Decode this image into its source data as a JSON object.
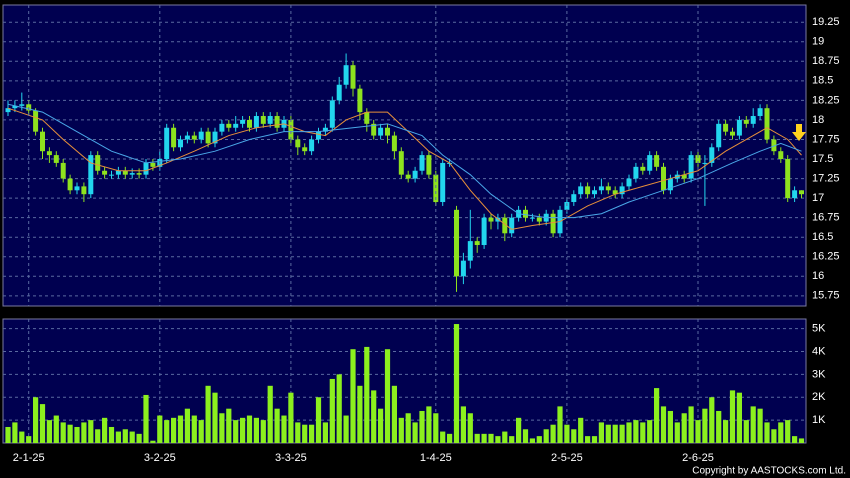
{
  "chart_data": [
    {
      "type": "candlestick",
      "up_color": "#22d6ee",
      "down_color": "#8ee21e",
      "grid": true,
      "ylim": [
        15.62,
        19.47
      ],
      "yticks": [
        15.75,
        16,
        16.25,
        16.5,
        16.75,
        17,
        17.25,
        17.5,
        17.75,
        18,
        18.25,
        18.5,
        18.75,
        19,
        19.25
      ],
      "ohlc": [
        [
          18.1,
          18.25,
          18.05,
          18.15
        ],
        [
          18.15,
          18.25,
          18.1,
          18.18
        ],
        [
          18.18,
          18.35,
          18.12,
          18.2
        ],
        [
          18.2,
          18.25,
          18.05,
          18.12
        ],
        [
          18.12,
          18.15,
          17.8,
          17.85
        ],
        [
          17.85,
          17.9,
          17.5,
          17.6
        ],
        [
          17.6,
          17.65,
          17.45,
          17.55
        ],
        [
          17.55,
          17.6,
          17.4,
          17.45
        ],
        [
          17.45,
          17.5,
          17.2,
          17.25
        ],
        [
          17.25,
          17.3,
          17.05,
          17.1
        ],
        [
          17.1,
          17.2,
          17.05,
          17.15
        ],
        [
          17.15,
          17.2,
          16.95,
          17.05
        ],
        [
          17.05,
          17.6,
          17.0,
          17.55
        ],
        [
          17.55,
          17.6,
          17.3,
          17.35
        ],
        [
          17.35,
          17.4,
          17.25,
          17.3
        ],
        [
          17.3,
          17.35,
          17.25,
          17.3
        ],
        [
          17.3,
          17.4,
          17.25,
          17.35
        ],
        [
          17.35,
          17.4,
          17.25,
          17.3
        ],
        [
          17.3,
          17.38,
          17.25,
          17.32
        ],
        [
          17.32,
          17.38,
          17.25,
          17.3
        ],
        [
          17.3,
          17.5,
          17.25,
          17.45
        ],
        [
          17.45,
          17.5,
          17.35,
          17.4
        ],
        [
          17.4,
          17.6,
          17.35,
          17.5
        ],
        [
          17.5,
          17.95,
          17.45,
          17.9
        ],
        [
          17.9,
          17.95,
          17.6,
          17.65
        ],
        [
          17.65,
          17.8,
          17.6,
          17.75
        ],
        [
          17.75,
          17.85,
          17.7,
          17.8
        ],
        [
          17.8,
          17.85,
          17.7,
          17.75
        ],
        [
          17.75,
          17.9,
          17.7,
          17.85
        ],
        [
          17.85,
          17.9,
          17.65,
          17.7
        ],
        [
          17.7,
          17.9,
          17.65,
          17.85
        ],
        [
          17.85,
          18.0,
          17.8,
          17.95
        ],
        [
          17.95,
          18.0,
          17.85,
          17.9
        ],
        [
          17.9,
          18.05,
          17.85,
          17.95
        ],
        [
          17.95,
          18.05,
          17.9,
          18.0
        ],
        [
          18.0,
          18.05,
          17.85,
          17.9
        ],
        [
          17.9,
          18.1,
          17.85,
          18.05
        ],
        [
          18.05,
          18.1,
          17.9,
          17.95
        ],
        [
          17.95,
          18.1,
          17.9,
          18.05
        ],
        [
          18.05,
          18.1,
          17.85,
          17.9
        ],
        [
          17.9,
          18.05,
          17.85,
          18.0
        ],
        [
          18.0,
          18.05,
          17.7,
          17.75
        ],
        [
          17.75,
          17.8,
          17.55,
          17.65
        ],
        [
          17.65,
          17.7,
          17.55,
          17.6
        ],
        [
          17.6,
          17.8,
          17.55,
          17.75
        ],
        [
          17.75,
          17.9,
          17.7,
          17.85
        ],
        [
          17.85,
          17.95,
          17.8,
          17.9
        ],
        [
          17.9,
          18.3,
          17.85,
          18.25
        ],
        [
          18.25,
          18.55,
          18.2,
          18.45
        ],
        [
          18.45,
          18.85,
          18.4,
          18.7
        ],
        [
          18.7,
          18.75,
          18.3,
          18.4
        ],
        [
          18.4,
          18.45,
          18.0,
          18.1
        ],
        [
          18.1,
          18.15,
          17.85,
          17.95
        ],
        [
          17.95,
          18.0,
          17.75,
          17.8
        ],
        [
          17.8,
          17.95,
          17.75,
          17.9
        ],
        [
          17.9,
          17.95,
          17.7,
          17.8
        ],
        [
          17.8,
          17.85,
          17.5,
          17.6
        ],
        [
          17.6,
          17.65,
          17.25,
          17.3
        ],
        [
          17.3,
          17.35,
          17.2,
          17.25
        ],
        [
          17.25,
          17.4,
          17.2,
          17.35
        ],
        [
          17.35,
          17.6,
          17.3,
          17.55
        ],
        [
          17.55,
          17.6,
          17.25,
          17.3
        ],
        [
          17.3,
          17.35,
          16.9,
          16.95
        ],
        [
          16.95,
          17.5,
          16.9,
          17.45
        ],
        [
          17.45,
          17.5,
          17.4,
          17.45
        ],
        [
          16.85,
          16.9,
          15.8,
          16.0
        ],
        [
          16.0,
          16.3,
          15.9,
          16.2
        ],
        [
          16.2,
          16.85,
          16.1,
          16.45
        ],
        [
          16.45,
          16.5,
          16.3,
          16.4
        ],
        [
          16.4,
          16.8,
          16.35,
          16.75
        ],
        [
          16.75,
          16.8,
          16.6,
          16.7
        ],
        [
          16.7,
          16.8,
          16.6,
          16.75
        ],
        [
          16.75,
          16.8,
          16.45,
          16.55
        ],
        [
          16.55,
          16.8,
          16.5,
          16.75
        ],
        [
          16.75,
          16.9,
          16.7,
          16.85
        ],
        [
          16.85,
          16.9,
          16.7,
          16.75
        ],
        [
          16.75,
          16.8,
          16.7,
          16.75
        ],
        [
          16.75,
          16.8,
          16.65,
          16.7
        ],
        [
          16.7,
          16.85,
          16.65,
          16.8
        ],
        [
          16.8,
          16.85,
          16.5,
          16.55
        ],
        [
          16.55,
          16.9,
          16.5,
          16.85
        ],
        [
          16.85,
          17.0,
          16.8,
          16.95
        ],
        [
          16.95,
          17.1,
          16.9,
          17.05
        ],
        [
          17.05,
          17.2,
          17.0,
          17.15
        ],
        [
          17.15,
          17.2,
          17.0,
          17.05
        ],
        [
          17.05,
          17.15,
          17.0,
          17.1
        ],
        [
          17.1,
          17.25,
          17.05,
          17.15
        ],
        [
          17.15,
          17.2,
          17.05,
          17.1
        ],
        [
          17.1,
          17.15,
          17.0,
          17.05
        ],
        [
          17.05,
          17.2,
          17.0,
          17.15
        ],
        [
          17.15,
          17.3,
          17.1,
          17.25
        ],
        [
          17.25,
          17.45,
          17.2,
          17.4
        ],
        [
          17.4,
          17.45,
          17.3,
          17.35
        ],
        [
          17.35,
          17.6,
          17.3,
          17.55
        ],
        [
          17.55,
          17.6,
          17.35,
          17.4
        ],
        [
          17.4,
          17.45,
          17.05,
          17.1
        ],
        [
          17.1,
          17.3,
          17.05,
          17.25
        ],
        [
          17.25,
          17.35,
          17.2,
          17.3
        ],
        [
          17.3,
          17.35,
          17.2,
          17.25
        ],
        [
          17.25,
          17.6,
          17.2,
          17.55
        ],
        [
          17.55,
          17.6,
          17.4,
          17.45
        ],
        [
          17.45,
          17.55,
          16.9,
          17.45
        ],
        [
          17.45,
          17.7,
          17.4,
          17.65
        ],
        [
          17.65,
          18.0,
          17.6,
          17.95
        ],
        [
          17.95,
          18.0,
          17.8,
          17.85
        ],
        [
          17.85,
          17.9,
          17.75,
          17.8
        ],
        [
          17.8,
          18.05,
          17.75,
          18.0
        ],
        [
          18.0,
          18.05,
          17.9,
          17.95
        ],
        [
          17.95,
          18.15,
          17.9,
          18.05
        ],
        [
          18.05,
          18.2,
          18.0,
          18.15
        ],
        [
          18.15,
          18.2,
          17.7,
          17.75
        ],
        [
          17.75,
          17.8,
          17.55,
          17.6
        ],
        [
          17.6,
          17.65,
          17.45,
          17.5
        ],
        [
          17.5,
          17.55,
          16.95,
          17.0
        ],
        [
          17.0,
          17.15,
          16.95,
          17.1
        ],
        [
          17.1,
          17.1,
          17.0,
          17.05
        ]
      ],
      "lines": [
        {
          "color": "#e8903a",
          "x": [
            0,
            5,
            8,
            12,
            16,
            20,
            23,
            27,
            32,
            36,
            40,
            43,
            46,
            49,
            52,
            55,
            58,
            61,
            64,
            67,
            70,
            73,
            76,
            80,
            84,
            88,
            92,
            96,
            100,
            104,
            108,
            110,
            113,
            115
          ],
          "values": [
            18.15,
            18.0,
            17.75,
            17.45,
            17.35,
            17.35,
            17.45,
            17.6,
            17.8,
            17.9,
            17.95,
            17.85,
            17.8,
            18.0,
            18.1,
            18.1,
            17.85,
            17.6,
            17.45,
            17.1,
            16.8,
            16.6,
            16.65,
            16.7,
            16.9,
            17.05,
            17.15,
            17.25,
            17.35,
            17.6,
            17.8,
            17.9,
            17.75,
            17.55
          ]
        },
        {
          "color": "#4aa8e8",
          "x": [
            0,
            5,
            10,
            15,
            20,
            25,
            30,
            35,
            40,
            45,
            50,
            55,
            60,
            63,
            67,
            70,
            74,
            78,
            82,
            86,
            90,
            95,
            100,
            105,
            109,
            112,
            115
          ],
          "values": [
            18.2,
            18.1,
            17.85,
            17.6,
            17.45,
            17.5,
            17.6,
            17.75,
            17.85,
            17.85,
            17.9,
            17.95,
            17.8,
            17.55,
            17.3,
            17.05,
            16.8,
            16.75,
            16.75,
            16.8,
            16.95,
            17.1,
            17.25,
            17.45,
            17.6,
            17.7,
            17.6
          ]
        }
      ]
    },
    {
      "type": "bar",
      "color": "#8cf01e",
      "grid": true,
      "ylim": [
        0,
        5420
      ],
      "yticks": [
        {
          "value": 1000,
          "label": "1K"
        },
        {
          "value": 2000,
          "label": "2K"
        },
        {
          "value": 3000,
          "label": "3K"
        },
        {
          "value": 4000,
          "label": "4K"
        },
        {
          "value": 5000,
          "label": "5K"
        }
      ],
      "categories": [
        null,
        null,
        null,
        "2-1-25",
        null,
        null,
        null,
        null,
        null,
        null,
        null,
        null,
        null,
        null,
        null,
        null,
        null,
        null,
        null,
        null,
        null,
        null,
        "3-2-25",
        null,
        null,
        null,
        null,
        null,
        null,
        null,
        null,
        null,
        null,
        null,
        null,
        null,
        null,
        null,
        null,
        null,
        null,
        "3-3-25",
        null,
        null,
        null,
        null,
        null,
        null,
        null,
        null,
        null,
        null,
        null,
        null,
        null,
        null,
        null,
        null,
        null,
        null,
        null,
        null,
        "1-4-25",
        null,
        null,
        null,
        null,
        null,
        null,
        null,
        null,
        null,
        null,
        null,
        null,
        null,
        null,
        null,
        null,
        null,
        null,
        "2-5-25",
        null,
        null,
        null,
        null,
        null,
        null,
        null,
        null,
        null,
        null,
        null,
        null,
        null,
        null,
        null,
        null,
        null,
        null,
        "2-6-25",
        null,
        null,
        null,
        null,
        null,
        null,
        null,
        null,
        null,
        null,
        null,
        null,
        null,
        null,
        null
      ],
      "values": [
        700,
        900,
        500,
        300,
        2000,
        1700,
        1000,
        1200,
        900,
        800,
        700,
        900,
        1000,
        600,
        1100,
        700,
        500,
        600,
        500,
        400,
        2100,
        100,
        1200,
        1000,
        1100,
        1200,
        1500,
        1200,
        1000,
        2500,
        2200,
        1300,
        1500,
        1000,
        1100,
        1200,
        1100,
        1000,
        2500,
        1500,
        1200,
        2200,
        900,
        800,
        800,
        2000,
        900,
        2800,
        3000,
        1200,
        4100,
        2500,
        4200,
        2300,
        1500,
        4100,
        2500,
        1100,
        1300,
        900,
        1400,
        1600,
        1300,
        500,
        400,
        5200,
        1600,
        1300,
        400,
        400,
        400,
        300,
        500,
        300,
        1100,
        600,
        200,
        300,
        600,
        800,
        1600,
        800,
        600,
        1100,
        300,
        300,
        900,
        800,
        800,
        800,
        900,
        1000,
        900,
        1000,
        2400,
        1600,
        1400,
        900,
        1300,
        1600,
        1000,
        1500,
        2000,
        1400,
        1000,
        2300,
        2200,
        1000,
        1600,
        1500,
        900,
        600,
        900,
        1000,
        300,
        200
      ]
    },
    {
      "type": "text",
      "copyright": "Copyright by AASTOCKS.com Ltd."
    }
  ]
}
